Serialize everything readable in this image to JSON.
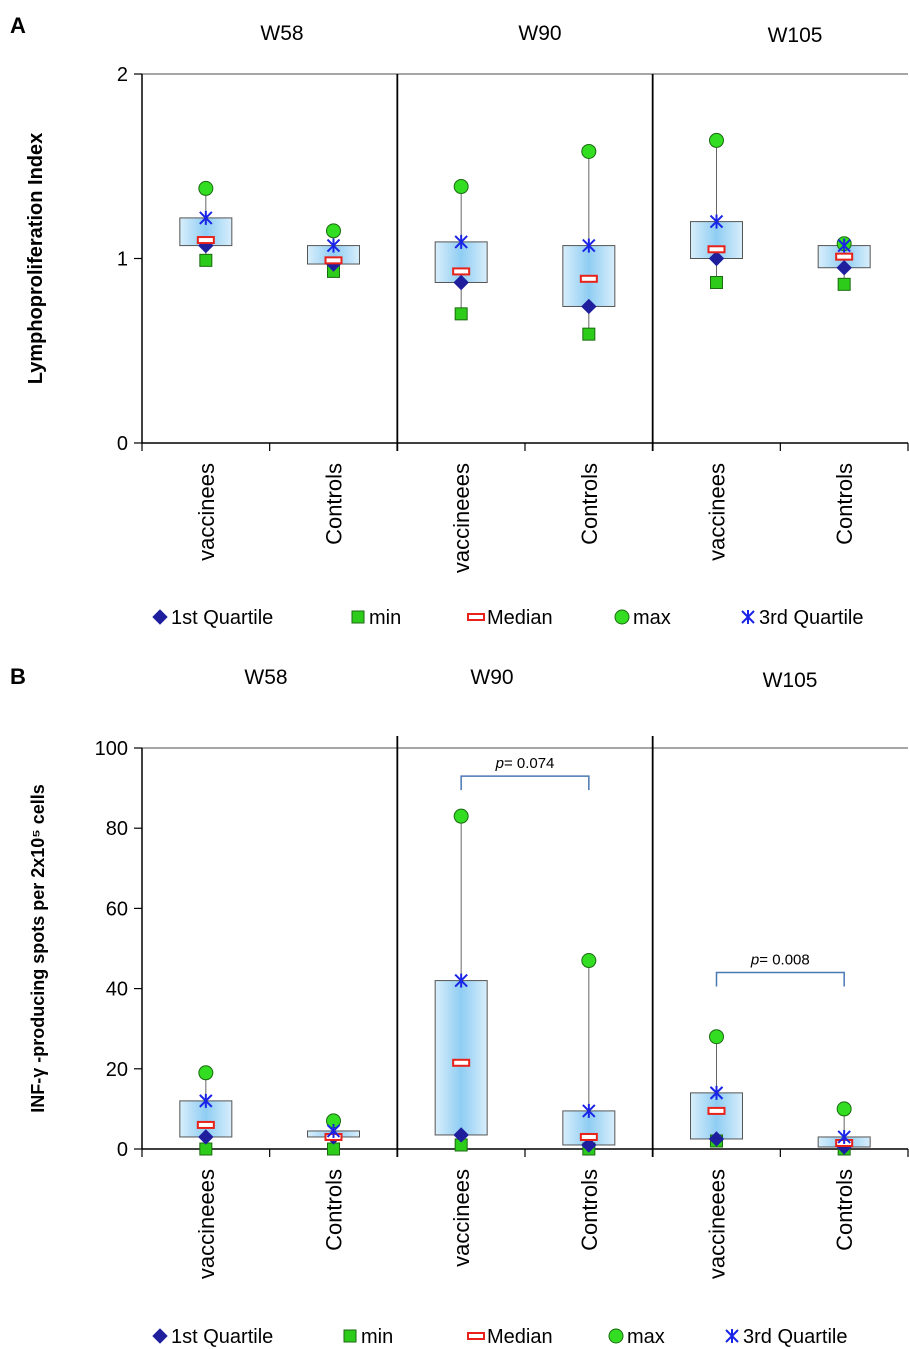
{
  "colors": {
    "box_top": "#d8eefb",
    "box_mid": "#8fcdf3",
    "box_stroke": "#555555",
    "q1": "#1f1f9e",
    "min": "#2ecc1a",
    "median": "#e8211a",
    "max": "#33dd22",
    "q3": "#1a24e6",
    "bracket": "#4a78b4"
  },
  "chart_data": [
    {
      "panel_letter": "A",
      "type": "box",
      "ylabel": "Lymphoproliferation Index",
      "ylim": [
        0,
        2
      ],
      "yticks": [
        0,
        1,
        2
      ],
      "groups": [
        "W58",
        "W90",
        "W105"
      ],
      "categories": [
        "vaccinees",
        "Controls",
        "vaccineees",
        "Controls",
        "vaccinees",
        "Controls"
      ],
      "series": [
        {
          "name": "1st Quartile",
          "values": [
            1.07,
            0.97,
            0.87,
            0.74,
            1.0,
            0.95
          ]
        },
        {
          "name": "min",
          "values": [
            0.99,
            0.93,
            0.7,
            0.59,
            0.87,
            0.86
          ]
        },
        {
          "name": "Median",
          "values": [
            1.1,
            0.99,
            0.93,
            0.89,
            1.05,
            1.01
          ]
        },
        {
          "name": "max",
          "values": [
            1.38,
            1.15,
            1.39,
            1.58,
            1.64,
            1.08
          ]
        },
        {
          "name": "3rd Quartile",
          "values": [
            1.22,
            1.07,
            1.09,
            1.07,
            1.2,
            1.07
          ]
        }
      ],
      "annotations": [],
      "legend": [
        "1st Quartile",
        "min",
        "Median",
        "max",
        "3rd Quartile"
      ]
    },
    {
      "panel_letter": "B",
      "type": "box",
      "ylabel": "INF-γ -producing spots per 2x10⁵ cells",
      "ylim": [
        0,
        100
      ],
      "yticks": [
        0,
        20,
        40,
        60,
        80,
        100
      ],
      "groups": [
        "W58",
        "W90",
        "W105"
      ],
      "categories": [
        "vaccineees",
        "Controls",
        "vaccinees",
        "Controls",
        "vaccineees",
        "Controls"
      ],
      "series": [
        {
          "name": "1st Quartile",
          "values": [
            3,
            3,
            3.5,
            1,
            2.5,
            0.5
          ]
        },
        {
          "name": "min",
          "values": [
            0,
            0,
            1,
            0,
            2,
            0
          ]
        },
        {
          "name": "Median",
          "values": [
            6,
            3,
            21.5,
            3,
            9.5,
            1.5
          ]
        },
        {
          "name": "max",
          "values": [
            19,
            7,
            83,
            47,
            28,
            10
          ]
        },
        {
          "name": "3rd Quartile",
          "values": [
            12,
            4.5,
            42,
            9.5,
            14,
            3
          ]
        }
      ],
      "annotations": [
        {
          "label_p": "p",
          "label_rest": "= 0.074",
          "from": 2,
          "to": 3,
          "y": 93
        },
        {
          "label_p": "p",
          "label_rest": "= 0.008",
          "from": 4,
          "to": 5,
          "y": 44
        }
      ],
      "legend": [
        "1st Quartile",
        "min",
        "Median",
        "max",
        "3rd Quartile"
      ]
    }
  ]
}
